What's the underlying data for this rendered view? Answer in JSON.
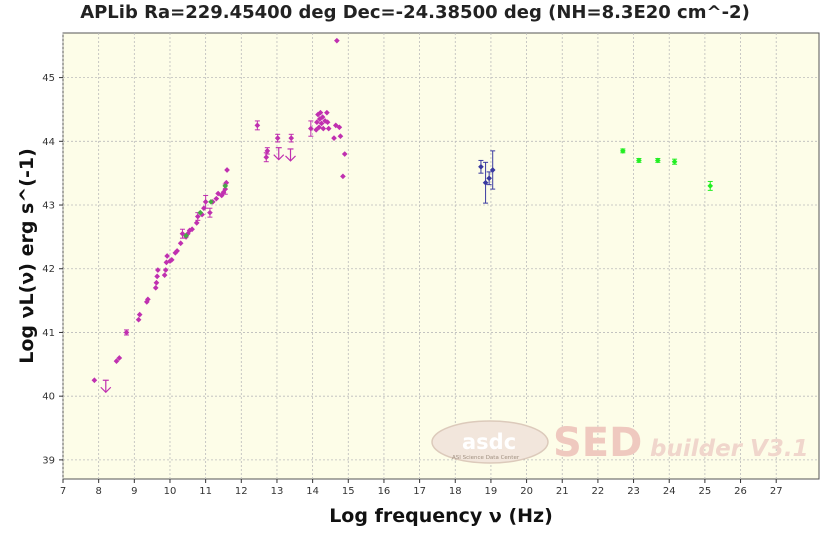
{
  "chart_data": {
    "type": "scatter",
    "title": "APLib Ra=229.45400 deg Dec=-24.38500 deg (NH=8.3E20 cm^-2)",
    "xlabel": "Log frequency ν (Hz)",
    "ylabel": "Log νL(ν) erg s^(-1)",
    "xlim": [
      7,
      28.2
    ],
    "ylim": [
      38.7,
      45.7
    ],
    "xticks": [
      7,
      8,
      9,
      10,
      11,
      12,
      13,
      14,
      15,
      16,
      17,
      18,
      19,
      20,
      21,
      22,
      23,
      24,
      25,
      26,
      27
    ],
    "yticks": [
      39,
      40,
      41,
      42,
      43,
      44,
      45
    ],
    "grid": true,
    "background": "#fdfde8",
    "watermark": {
      "logo": "asdc",
      "logo_sub": "ASI Science Data Center",
      "product": "SED",
      "product_suffix": "builder V3.1"
    },
    "series": [
      {
        "color": "#c030b0",
        "points": [
          {
            "x": 7.88,
            "y": 40.25
          },
          {
            "x": 8.5,
            "y": 40.55
          },
          {
            "x": 8.58,
            "y": 40.6
          },
          {
            "x": 8.78,
            "y": 41.0,
            "err": 0.04
          },
          {
            "x": 9.12,
            "y": 41.2
          },
          {
            "x": 9.15,
            "y": 41.28
          },
          {
            "x": 9.35,
            "y": 41.48
          },
          {
            "x": 9.38,
            "y": 41.52
          },
          {
            "x": 9.6,
            "y": 41.7
          },
          {
            "x": 9.62,
            "y": 41.78
          },
          {
            "x": 9.64,
            "y": 41.88
          },
          {
            "x": 9.66,
            "y": 41.98
          },
          {
            "x": 9.85,
            "y": 41.9
          },
          {
            "x": 9.88,
            "y": 41.98
          },
          {
            "x": 9.9,
            "y": 42.1
          },
          {
            "x": 9.92,
            "y": 42.2
          },
          {
            "x": 10.0,
            "y": 42.12
          },
          {
            "x": 10.05,
            "y": 42.14
          },
          {
            "x": 10.15,
            "y": 42.25
          },
          {
            "x": 10.2,
            "y": 42.28
          },
          {
            "x": 10.3,
            "y": 42.4
          },
          {
            "x": 10.35,
            "y": 42.55,
            "err": 0.07
          },
          {
            "x": 10.45,
            "y": 42.5
          },
          {
            "x": 10.5,
            "y": 42.55
          },
          {
            "x": 10.55,
            "y": 42.6
          },
          {
            "x": 10.62,
            "y": 42.62
          },
          {
            "x": 10.75,
            "y": 42.72
          },
          {
            "x": 10.78,
            "y": 42.82,
            "err": 0.06
          },
          {
            "x": 10.9,
            "y": 42.85
          },
          {
            "x": 10.95,
            "y": 42.95
          },
          {
            "x": 11.0,
            "y": 43.05,
            "err": 0.1
          },
          {
            "x": 11.12,
            "y": 42.88,
            "err": 0.07
          },
          {
            "x": 11.2,
            "y": 43.05
          },
          {
            "x": 11.3,
            "y": 43.1
          },
          {
            "x": 11.35,
            "y": 43.18
          },
          {
            "x": 11.45,
            "y": 43.15
          },
          {
            "x": 11.5,
            "y": 43.2
          },
          {
            "x": 11.55,
            "y": 43.25,
            "err": 0.08
          },
          {
            "x": 11.58,
            "y": 43.35
          },
          {
            "x": 11.6,
            "y": 43.55
          },
          {
            "x": 12.45,
            "y": 44.25,
            "err": 0.07
          },
          {
            "x": 12.7,
            "y": 43.75,
            "err": 0.07
          },
          {
            "x": 12.73,
            "y": 43.85,
            "err": 0.05
          },
          {
            "x": 13.02,
            "y": 44.05,
            "err": 0.06
          },
          {
            "x": 13.4,
            "y": 44.05,
            "err": 0.06
          },
          {
            "x": 13.95,
            "y": 44.2,
            "err": 0.12
          },
          {
            "x": 14.1,
            "y": 44.18
          },
          {
            "x": 14.12,
            "y": 44.3
          },
          {
            "x": 14.15,
            "y": 44.42
          },
          {
            "x": 14.18,
            "y": 44.22
          },
          {
            "x": 14.2,
            "y": 44.35
          },
          {
            "x": 14.22,
            "y": 44.45
          },
          {
            "x": 14.25,
            "y": 44.28
          },
          {
            "x": 14.28,
            "y": 44.38
          },
          {
            "x": 14.3,
            "y": 44.2
          },
          {
            "x": 14.35,
            "y": 44.32
          },
          {
            "x": 14.4,
            "y": 44.45
          },
          {
            "x": 14.42,
            "y": 44.3
          },
          {
            "x": 14.45,
            "y": 44.2
          },
          {
            "x": 14.6,
            "y": 44.05
          },
          {
            "x": 14.65,
            "y": 44.25
          },
          {
            "x": 14.68,
            "y": 45.58
          },
          {
            "x": 14.75,
            "y": 44.22
          },
          {
            "x": 14.78,
            "y": 44.08
          },
          {
            "x": 14.85,
            "y": 43.45
          },
          {
            "x": 14.9,
            "y": 43.8
          }
        ],
        "upper_limits": [
          {
            "x": 8.2,
            "y": 40.25
          },
          {
            "x": 13.05,
            "y": 43.9
          },
          {
            "x": 13.38,
            "y": 43.88
          }
        ]
      },
      {
        "color": "#44aa44",
        "points": [
          {
            "x": 10.45,
            "y": 42.52
          },
          {
            "x": 10.85,
            "y": 42.88
          },
          {
            "x": 11.15,
            "y": 43.05
          },
          {
            "x": 11.55,
            "y": 43.3
          }
        ]
      },
      {
        "color": "#3a3aa0",
        "points": [
          {
            "x": 18.72,
            "y": 43.6,
            "err": 0.1
          },
          {
            "x": 18.85,
            "y": 43.35,
            "err": 0.32
          },
          {
            "x": 18.95,
            "y": 43.42,
            "err": 0.1
          },
          {
            "x": 19.05,
            "y": 43.55,
            "err": 0.3
          }
        ]
      },
      {
        "color": "#22ee22",
        "points": [
          {
            "x": 22.7,
            "y": 43.85,
            "err": 0.03
          },
          {
            "x": 23.15,
            "y": 43.7,
            "err": 0.03
          },
          {
            "x": 23.68,
            "y": 43.7,
            "err": 0.03
          },
          {
            "x": 24.15,
            "y": 43.68,
            "err": 0.04
          },
          {
            "x": 25.15,
            "y": 43.3,
            "err": 0.07
          }
        ]
      }
    ]
  }
}
